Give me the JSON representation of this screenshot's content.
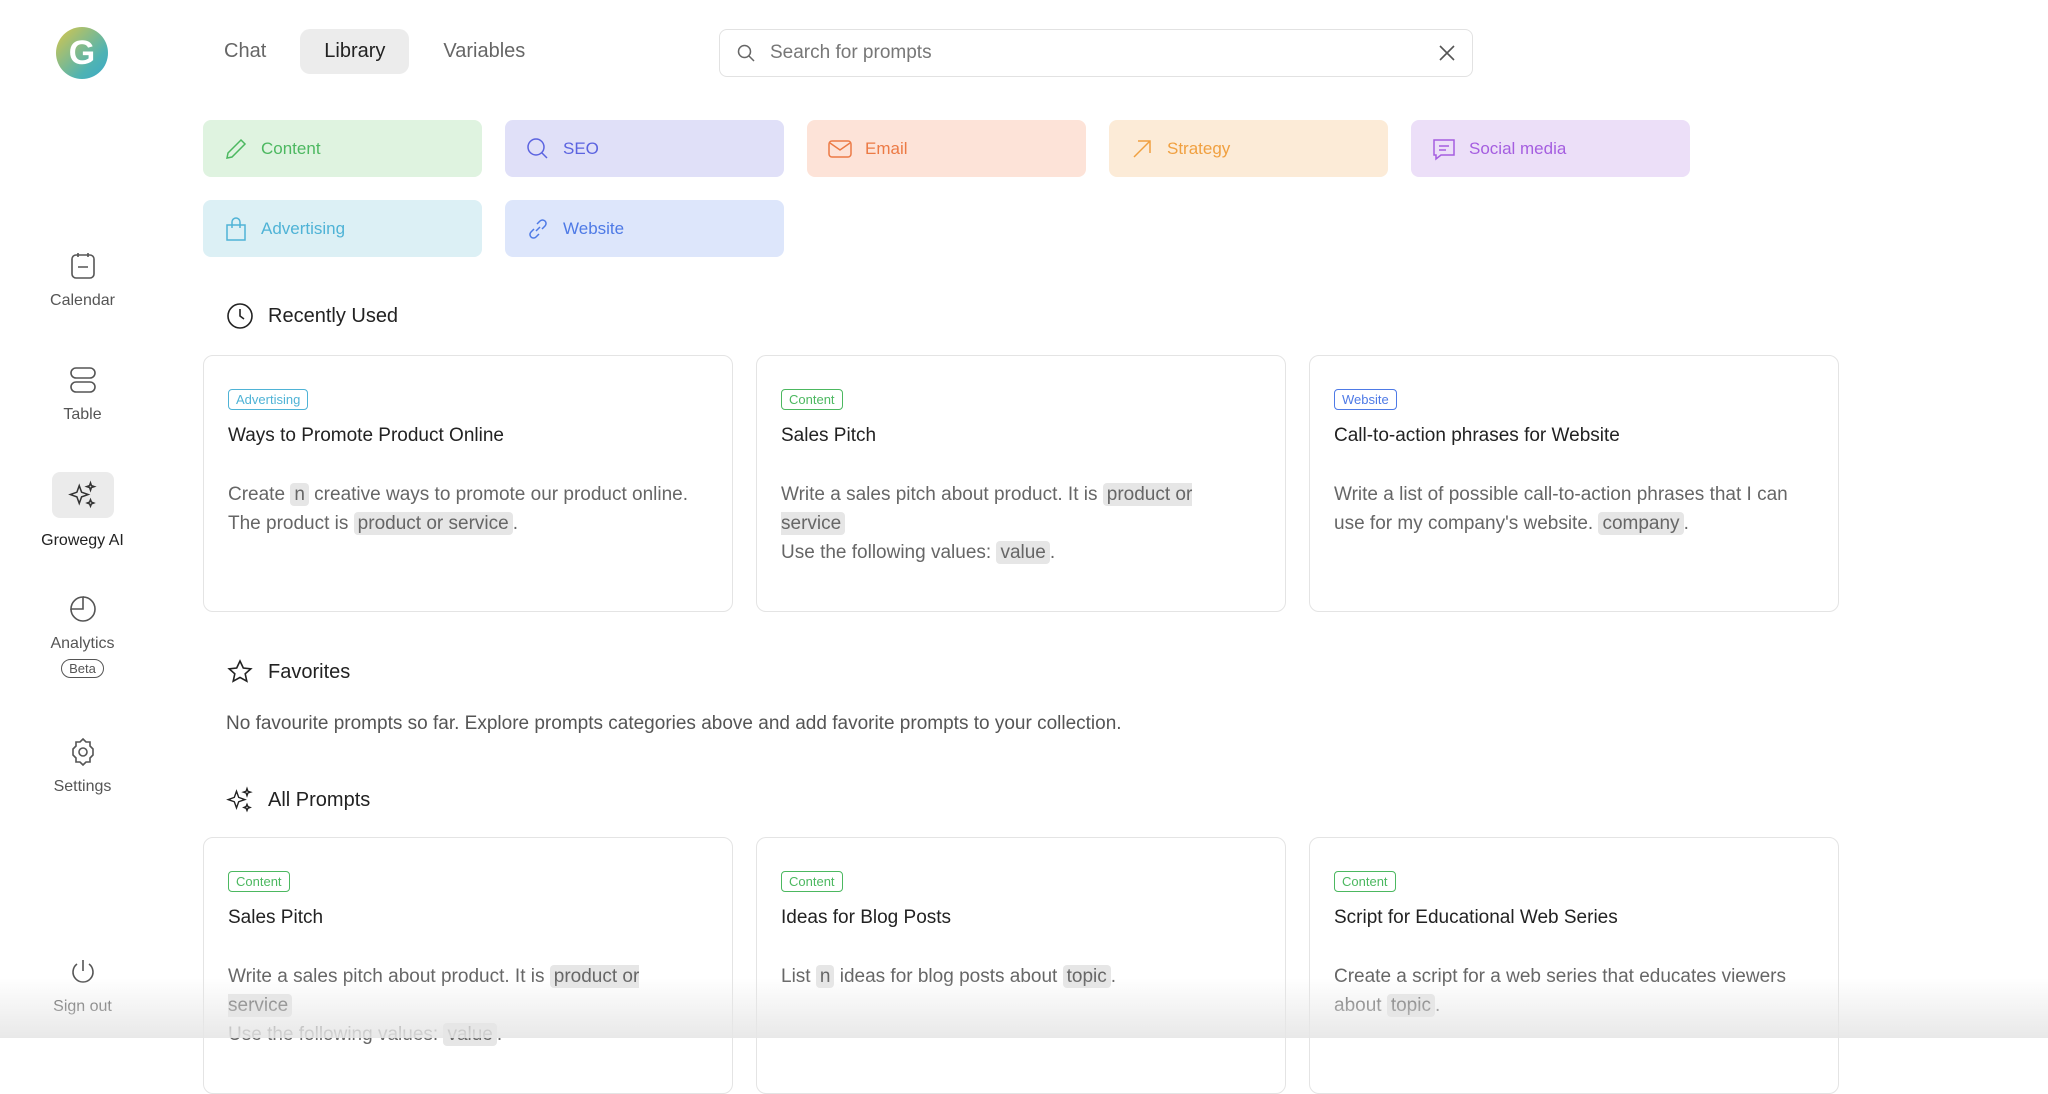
{
  "logo": {
    "letter": "G"
  },
  "sidebar": {
    "items": [
      {
        "label": "Calendar"
      },
      {
        "label": "Table"
      },
      {
        "label": "Growegy AI"
      },
      {
        "label": "Analytics",
        "badge": "Beta"
      },
      {
        "label": "Settings"
      },
      {
        "label": "Sign out"
      }
    ]
  },
  "tabs": [
    {
      "label": "Chat"
    },
    {
      "label": "Library",
      "active": true
    },
    {
      "label": "Variables"
    }
  ],
  "search": {
    "placeholder": "Search for prompts",
    "value": ""
  },
  "categories": [
    {
      "label": "Content",
      "icon": "pencil-icon",
      "bg": "#dff3e0",
      "fg": "#4cb860"
    },
    {
      "label": "SEO",
      "icon": "search-icon",
      "bg": "#e0e0f8",
      "fg": "#5b63e0"
    },
    {
      "label": "Email",
      "icon": "mail-icon",
      "bg": "#fde3d8",
      "fg": "#ec7a45"
    },
    {
      "label": "Strategy",
      "icon": "arrow-up-right-icon",
      "bg": "#fcebd7",
      "fg": "#f0a040"
    },
    {
      "label": "Social media",
      "icon": "message-icon",
      "bg": "#ecdff8",
      "fg": "#a55ee0"
    },
    {
      "label": "Advertising",
      "icon": "shopping-bag-icon",
      "bg": "#dcf0f5",
      "fg": "#4fb3d6"
    },
    {
      "label": "Website",
      "icon": "link-icon",
      "bg": "#dde6fb",
      "fg": "#4e7ae6"
    }
  ],
  "recent": {
    "title": "Recently Used",
    "cards": [
      {
        "badge": "Advertising",
        "badge_color": "#4fb3d6",
        "title": "Ways to Promote Product Online",
        "body": [
          [
            "t",
            "Create "
          ],
          [
            "v",
            "n"
          ],
          [
            "t",
            " creative ways to promote our product online. The product is "
          ],
          [
            "v",
            "product or service"
          ],
          [
            "t",
            "."
          ]
        ]
      },
      {
        "badge": "Content",
        "badge_color": "#4cb860",
        "title": "Sales Pitch",
        "body": [
          [
            "t",
            "Write a sales pitch about product. It is "
          ],
          [
            "v",
            "product or service"
          ],
          [
            "br",
            ""
          ],
          [
            "t",
            "Use the following values: "
          ],
          [
            "v",
            "value"
          ],
          [
            "t",
            "."
          ]
        ]
      },
      {
        "badge": "Website",
        "badge_color": "#4e7ae6",
        "title": "Call-to-action phrases for Website",
        "body": [
          [
            "t",
            "Write a list of possible call-to-action phrases that I can use for my company's website. "
          ],
          [
            "v",
            "company"
          ],
          [
            "t",
            "."
          ]
        ]
      }
    ]
  },
  "favorites": {
    "title": "Favorites",
    "empty": "No favourite prompts so far. Explore prompts categories above and add favorite prompts to your collection."
  },
  "all": {
    "title": "All Prompts",
    "cards": [
      {
        "badge": "Content",
        "badge_color": "#4cb860",
        "title": "Sales Pitch",
        "body": [
          [
            "t",
            "Write a sales pitch about product. It is "
          ],
          [
            "v",
            "product or service"
          ],
          [
            "br",
            ""
          ],
          [
            "t",
            "Use the following values: "
          ],
          [
            "v",
            "value"
          ],
          [
            "t",
            "."
          ]
        ]
      },
      {
        "badge": "Content",
        "badge_color": "#4cb860",
        "title": "Ideas for Blog Posts",
        "body": [
          [
            "t",
            "List "
          ],
          [
            "v",
            "n"
          ],
          [
            "t",
            " ideas for blog posts about "
          ],
          [
            "v",
            "topic"
          ],
          [
            "t",
            "."
          ]
        ]
      },
      {
        "badge": "Content",
        "badge_color": "#4cb860",
        "title": "Script for Educational Web Series",
        "body": [
          [
            "t",
            "Create a script for a web series that educates viewers about "
          ],
          [
            "v",
            "topic"
          ],
          [
            "t",
            "."
          ]
        ]
      }
    ]
  }
}
